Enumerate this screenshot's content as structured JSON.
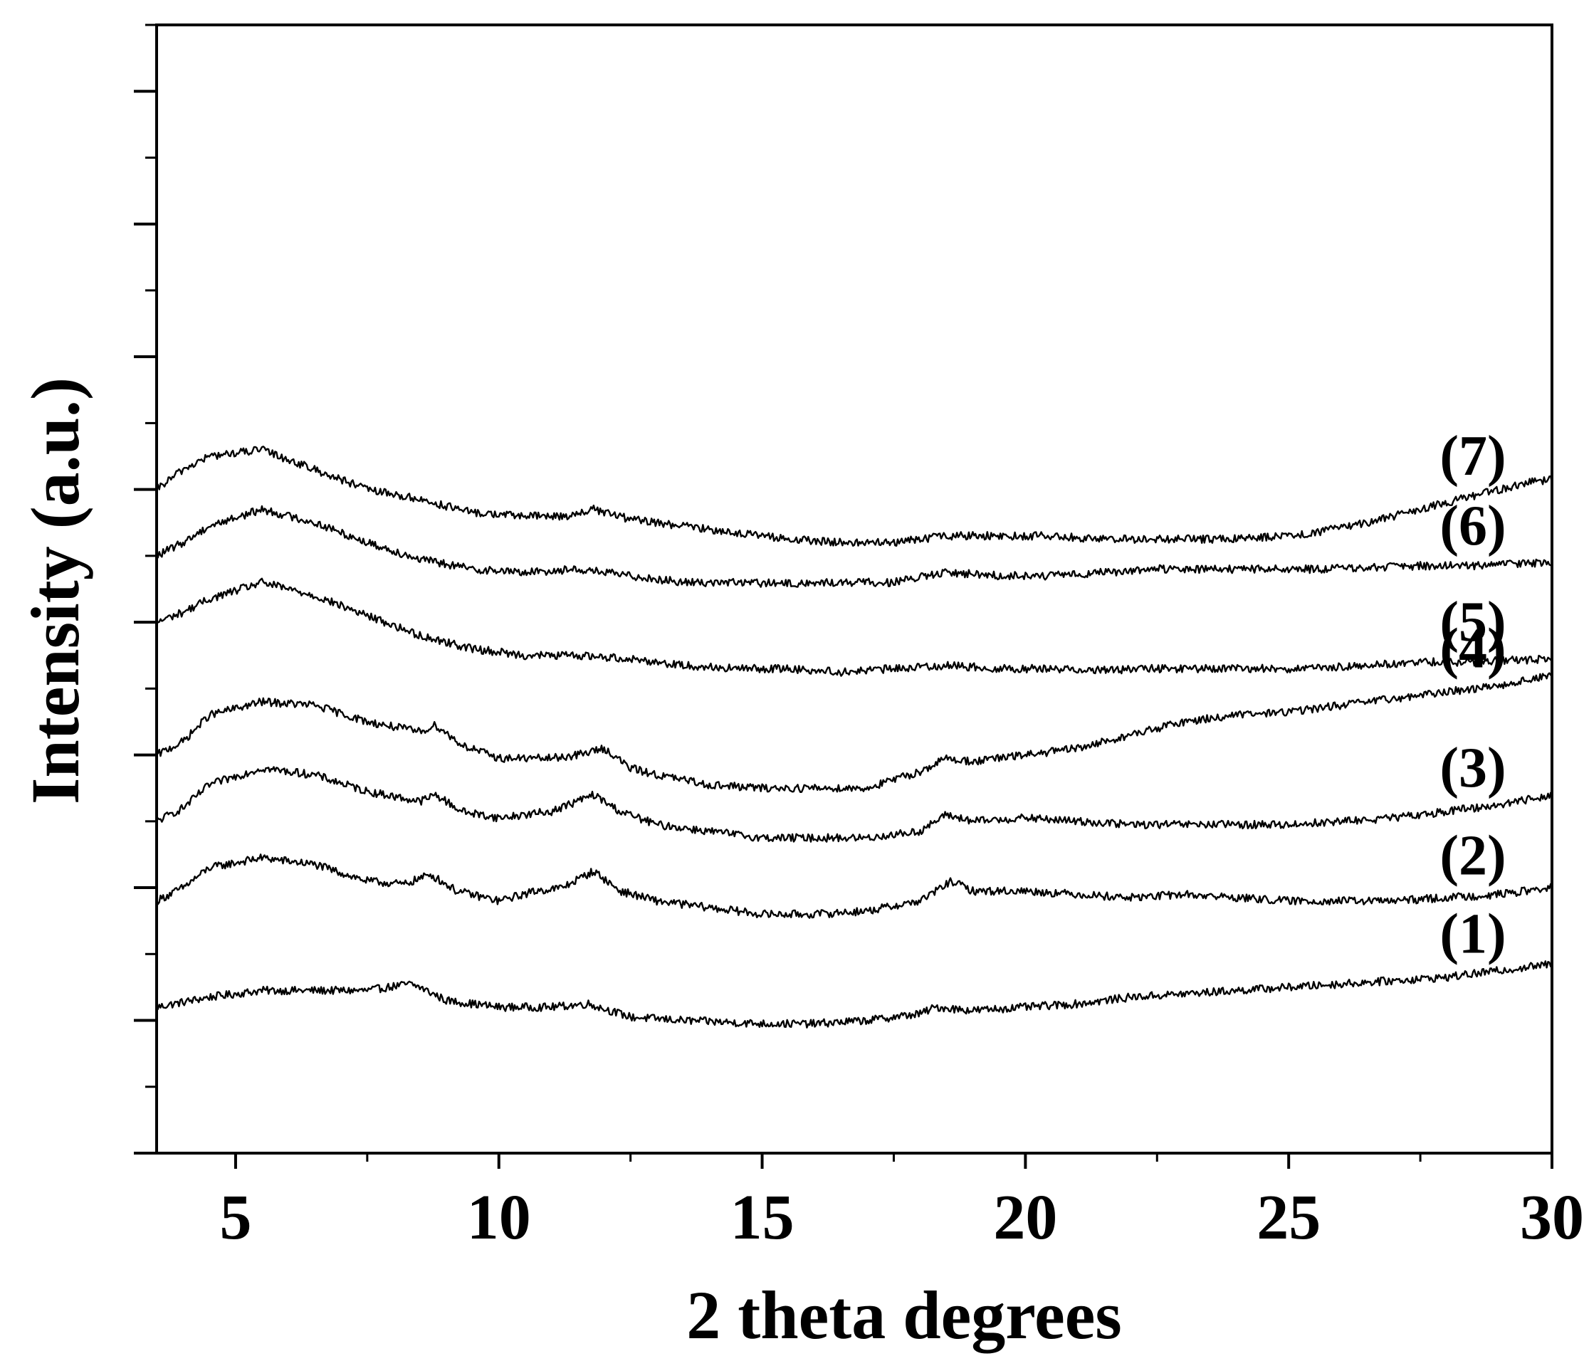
{
  "chart_data": {
    "type": "line",
    "title": "",
    "xlabel": "2 theta degrees",
    "ylabel": "Intensity (a.u.)",
    "xlim": [
      3.5,
      30
    ],
    "ylim": [
      0,
      17
    ],
    "x_ticks": [
      5,
      10,
      15,
      20,
      25,
      30
    ],
    "x_minor_step": 2.5,
    "y_tick_labels_shown": false,
    "grid": false,
    "legend": "none",
    "line_color": "#000000",
    "series": [
      {
        "name": "(1)",
        "points": [
          [
            3.5,
            2.2
          ],
          [
            4.5,
            2.35
          ],
          [
            5.5,
            2.45
          ],
          [
            6.5,
            2.45
          ],
          [
            7.5,
            2.45
          ],
          [
            8.3,
            2.55
          ],
          [
            8.5,
            2.5
          ],
          [
            9.0,
            2.3
          ],
          [
            10.0,
            2.2
          ],
          [
            11.0,
            2.2
          ],
          [
            11.7,
            2.25
          ],
          [
            12.5,
            2.05
          ],
          [
            13.5,
            2.0
          ],
          [
            15.0,
            1.95
          ],
          [
            16.0,
            1.95
          ],
          [
            17.0,
            2.0
          ],
          [
            18.0,
            2.1
          ],
          [
            18.3,
            2.2
          ],
          [
            19.0,
            2.15
          ],
          [
            20.0,
            2.2
          ],
          [
            21.0,
            2.25
          ],
          [
            22.0,
            2.35
          ],
          [
            23.0,
            2.4
          ],
          [
            24.0,
            2.45
          ],
          [
            25.0,
            2.5
          ],
          [
            26.0,
            2.55
          ],
          [
            27.0,
            2.6
          ],
          [
            28.0,
            2.65
          ],
          [
            29.0,
            2.75
          ],
          [
            30.0,
            2.85
          ]
        ]
      },
      {
        "name": "(2)",
        "points": [
          [
            3.5,
            3.8
          ],
          [
            4.0,
            4.0
          ],
          [
            4.5,
            4.3
          ],
          [
            5.5,
            4.45
          ],
          [
            6.5,
            4.35
          ],
          [
            7.5,
            4.1
          ],
          [
            8.2,
            4.05
          ],
          [
            8.7,
            4.2
          ],
          [
            9.2,
            3.95
          ],
          [
            10.0,
            3.8
          ],
          [
            10.7,
            3.95
          ],
          [
            11.2,
            4.0
          ],
          [
            11.8,
            4.25
          ],
          [
            12.3,
            3.95
          ],
          [
            13.0,
            3.8
          ],
          [
            14.0,
            3.7
          ],
          [
            15.0,
            3.6
          ],
          [
            16.0,
            3.6
          ],
          [
            17.0,
            3.65
          ],
          [
            18.0,
            3.8
          ],
          [
            18.6,
            4.1
          ],
          [
            19.0,
            3.95
          ],
          [
            20.0,
            3.95
          ],
          [
            21.0,
            3.9
          ],
          [
            22.0,
            3.85
          ],
          [
            23.0,
            3.9
          ],
          [
            24.0,
            3.85
          ],
          [
            25.0,
            3.8
          ],
          [
            26.0,
            3.8
          ],
          [
            27.0,
            3.8
          ],
          [
            28.0,
            3.85
          ],
          [
            29.0,
            3.9
          ],
          [
            30.0,
            4.0
          ]
        ]
      },
      {
        "name": "(3)",
        "points": [
          [
            3.5,
            5.0
          ],
          [
            4.0,
            5.2
          ],
          [
            4.5,
            5.55
          ],
          [
            5.5,
            5.8
          ],
          [
            6.5,
            5.7
          ],
          [
            7.5,
            5.45
          ],
          [
            8.5,
            5.3
          ],
          [
            8.8,
            5.4
          ],
          [
            9.3,
            5.15
          ],
          [
            10.0,
            5.05
          ],
          [
            11.0,
            5.15
          ],
          [
            11.8,
            5.4
          ],
          [
            12.3,
            5.15
          ],
          [
            13.0,
            4.95
          ],
          [
            14.0,
            4.85
          ],
          [
            15.0,
            4.75
          ],
          [
            16.0,
            4.75
          ],
          [
            17.0,
            4.75
          ],
          [
            18.0,
            4.85
          ],
          [
            18.5,
            5.1
          ],
          [
            19.0,
            5.0
          ],
          [
            20.0,
            5.05
          ],
          [
            21.0,
            5.0
          ],
          [
            22.0,
            4.95
          ],
          [
            23.0,
            4.95
          ],
          [
            24.0,
            4.95
          ],
          [
            25.0,
            4.95
          ],
          [
            26.0,
            5.0
          ],
          [
            27.0,
            5.05
          ],
          [
            28.0,
            5.15
          ],
          [
            29.0,
            5.25
          ],
          [
            30.0,
            5.4
          ]
        ]
      },
      {
        "name": "(4)",
        "points": [
          [
            3.5,
            6.0
          ],
          [
            4.0,
            6.2
          ],
          [
            4.5,
            6.6
          ],
          [
            5.5,
            6.8
          ],
          [
            6.5,
            6.75
          ],
          [
            7.5,
            6.5
          ],
          [
            8.5,
            6.35
          ],
          [
            8.8,
            6.45
          ],
          [
            9.3,
            6.15
          ],
          [
            10.0,
            5.95
          ],
          [
            11.0,
            5.95
          ],
          [
            11.5,
            6.0
          ],
          [
            12.0,
            6.1
          ],
          [
            12.5,
            5.8
          ],
          [
            13.0,
            5.7
          ],
          [
            14.0,
            5.55
          ],
          [
            15.0,
            5.5
          ],
          [
            16.0,
            5.5
          ],
          [
            17.0,
            5.5
          ],
          [
            18.0,
            5.75
          ],
          [
            18.5,
            5.95
          ],
          [
            19.0,
            5.9
          ],
          [
            20.0,
            6.0
          ],
          [
            21.0,
            6.1
          ],
          [
            22.0,
            6.3
          ],
          [
            23.0,
            6.5
          ],
          [
            24.0,
            6.6
          ],
          [
            25.0,
            6.65
          ],
          [
            26.0,
            6.75
          ],
          [
            27.0,
            6.85
          ],
          [
            28.0,
            6.95
          ],
          [
            29.0,
            7.05
          ],
          [
            30.0,
            7.2
          ]
        ]
      },
      {
        "name": "(5)",
        "points": [
          [
            3.5,
            8.0
          ],
          [
            4.0,
            8.15
          ],
          [
            4.5,
            8.35
          ],
          [
            5.5,
            8.6
          ],
          [
            6.5,
            8.4
          ],
          [
            7.5,
            8.1
          ],
          [
            8.5,
            7.8
          ],
          [
            9.5,
            7.6
          ],
          [
            10.5,
            7.5
          ],
          [
            11.5,
            7.5
          ],
          [
            12.5,
            7.45
          ],
          [
            13.5,
            7.35
          ],
          [
            14.5,
            7.3
          ],
          [
            15.5,
            7.3
          ],
          [
            16.5,
            7.25
          ],
          [
            17.5,
            7.3
          ],
          [
            18.5,
            7.35
          ],
          [
            19.5,
            7.3
          ],
          [
            20.5,
            7.3
          ],
          [
            21.5,
            7.28
          ],
          [
            22.5,
            7.3
          ],
          [
            23.5,
            7.3
          ],
          [
            24.5,
            7.3
          ],
          [
            25.5,
            7.3
          ],
          [
            26.5,
            7.35
          ],
          [
            27.5,
            7.4
          ],
          [
            28.5,
            7.4
          ],
          [
            30.0,
            7.45
          ]
        ]
      },
      {
        "name": "(6)",
        "points": [
          [
            3.5,
            9.0
          ],
          [
            4.0,
            9.2
          ],
          [
            4.5,
            9.45
          ],
          [
            5.5,
            9.7
          ],
          [
            6.5,
            9.5
          ],
          [
            7.5,
            9.2
          ],
          [
            8.5,
            8.95
          ],
          [
            9.5,
            8.8
          ],
          [
            10.5,
            8.75
          ],
          [
            11.5,
            8.8
          ],
          [
            12.5,
            8.7
          ],
          [
            13.5,
            8.6
          ],
          [
            14.5,
            8.6
          ],
          [
            15.5,
            8.58
          ],
          [
            16.5,
            8.6
          ],
          [
            17.5,
            8.6
          ],
          [
            18.5,
            8.75
          ],
          [
            19.5,
            8.7
          ],
          [
            20.5,
            8.7
          ],
          [
            21.5,
            8.75
          ],
          [
            22.5,
            8.8
          ],
          [
            23.5,
            8.8
          ],
          [
            24.5,
            8.8
          ],
          [
            25.5,
            8.8
          ],
          [
            26.5,
            8.82
          ],
          [
            27.5,
            8.85
          ],
          [
            28.5,
            8.85
          ],
          [
            30.0,
            8.9
          ]
        ]
      },
      {
        "name": "(7)",
        "points": [
          [
            3.5,
            10.0
          ],
          [
            4.0,
            10.3
          ],
          [
            4.5,
            10.5
          ],
          [
            5.5,
            10.6
          ],
          [
            6.5,
            10.3
          ],
          [
            7.5,
            10.0
          ],
          [
            8.5,
            9.85
          ],
          [
            9.5,
            9.65
          ],
          [
            10.5,
            9.6
          ],
          [
            11.3,
            9.6
          ],
          [
            11.8,
            9.7
          ],
          [
            12.5,
            9.55
          ],
          [
            13.5,
            9.45
          ],
          [
            14.5,
            9.35
          ],
          [
            15.5,
            9.25
          ],
          [
            16.5,
            9.2
          ],
          [
            17.5,
            9.2
          ],
          [
            18.5,
            9.3
          ],
          [
            19.5,
            9.3
          ],
          [
            20.5,
            9.3
          ],
          [
            21.5,
            9.25
          ],
          [
            22.5,
            9.25
          ],
          [
            23.5,
            9.25
          ],
          [
            24.5,
            9.28
          ],
          [
            25.5,
            9.35
          ],
          [
            26.5,
            9.5
          ],
          [
            27.5,
            9.7
          ],
          [
            28.5,
            9.9
          ],
          [
            29.5,
            10.1
          ],
          [
            30.0,
            10.15
          ]
        ]
      }
    ]
  }
}
